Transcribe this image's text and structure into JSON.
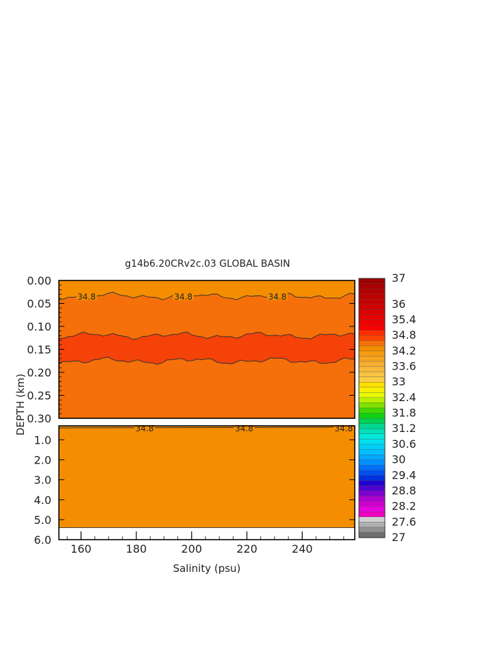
{
  "chart_data": {
    "type": "heatmap",
    "title": "g14b6.20CRv2c.03 GLOBAL BASIN",
    "xlabel": "Salinity (psu)",
    "ylabel": "DEPTH (km)",
    "x_range": [
      152,
      259
    ],
    "x_ticks": [
      "160",
      "180",
      "200",
      "220",
      "240"
    ],
    "x_tick_values": [
      160,
      180,
      200,
      220,
      240
    ],
    "upper_panel": {
      "ylim": [
        0.0,
        0.3
      ],
      "y_ticks": [
        "0.00",
        "0.05",
        "0.10",
        "0.15",
        "0.20",
        "0.25",
        "0.30"
      ],
      "y_tick_values": [
        0.0,
        0.05,
        0.1,
        0.15,
        0.2,
        0.25,
        0.3
      ],
      "background_color": "#f5700a",
      "core_band": {
        "color": "#f54208",
        "top_depth_km": 0.12,
        "bottom_depth_km": 0.175
      },
      "surface_layer": {
        "color": "#f48e00",
        "depth_km": 0.034
      },
      "contour_labels": [
        "34.8",
        "34.8",
        "34.8"
      ],
      "contour_label_x": [
        162,
        197,
        231
      ]
    },
    "lower_panel": {
      "ylim": [
        0.3,
        6.0
      ],
      "y_ticks": [
        "1.0",
        "2.0",
        "3.0",
        "4.0",
        "5.0",
        "6.0"
      ],
      "y_tick_values": [
        1.0,
        2.0,
        3.0,
        4.0,
        5.0,
        6.0
      ],
      "fill_color": "#f48e00",
      "bottom_depth_km": 5.4,
      "contour_labels": [
        "34.8",
        "34.8",
        "34.8"
      ],
      "contour_label_x": [
        183,
        219,
        255
      ]
    },
    "colorbar": {
      "labels": [
        "37",
        "36",
        "35.4",
        "34.8",
        "34.2",
        "33.6",
        "33",
        "32.4",
        "31.8",
        "31.2",
        "30.6",
        "30",
        "29.4",
        "28.8",
        "28.2",
        "27.6",
        "27"
      ],
      "label_values": [
        37,
        36,
        35.4,
        34.8,
        34.2,
        33.6,
        33,
        32.4,
        31.8,
        31.2,
        30.6,
        30,
        29.4,
        28.8,
        28.2,
        27.6,
        27
      ],
      "levels_top_to_bottom": [
        "#9e0000",
        "#a80000",
        "#b30000",
        "#bd0000",
        "#c70000",
        "#d10000",
        "#db0000",
        "#e60000",
        "#f00000",
        "#fa0000",
        "#ff2d00",
        "#ff4600",
        "#f5700a",
        "#f48e00",
        "#f59c10",
        "#f6a520",
        "#f7ad30",
        "#f8b838",
        "#fac440",
        "#fbce45",
        "#ffe000",
        "#f8f000",
        "#e8f800",
        "#b8f000",
        "#80e000",
        "#40d800",
        "#10d010",
        "#00d050",
        "#00d890",
        "#00e0b8",
        "#00e8d8",
        "#00e0f0",
        "#00d0f8",
        "#00c0ff",
        "#00a8ff",
        "#0090ff",
        "#0070ff",
        "#0050f0",
        "#0030e0",
        "#2000d0",
        "#5000d0",
        "#8000d0",
        "#b000d0",
        "#d000d0",
        "#e800e0",
        "#f000c0",
        "#d0d0d0",
        "#b0b0b0",
        "#909090",
        "#707070"
      ]
    }
  }
}
